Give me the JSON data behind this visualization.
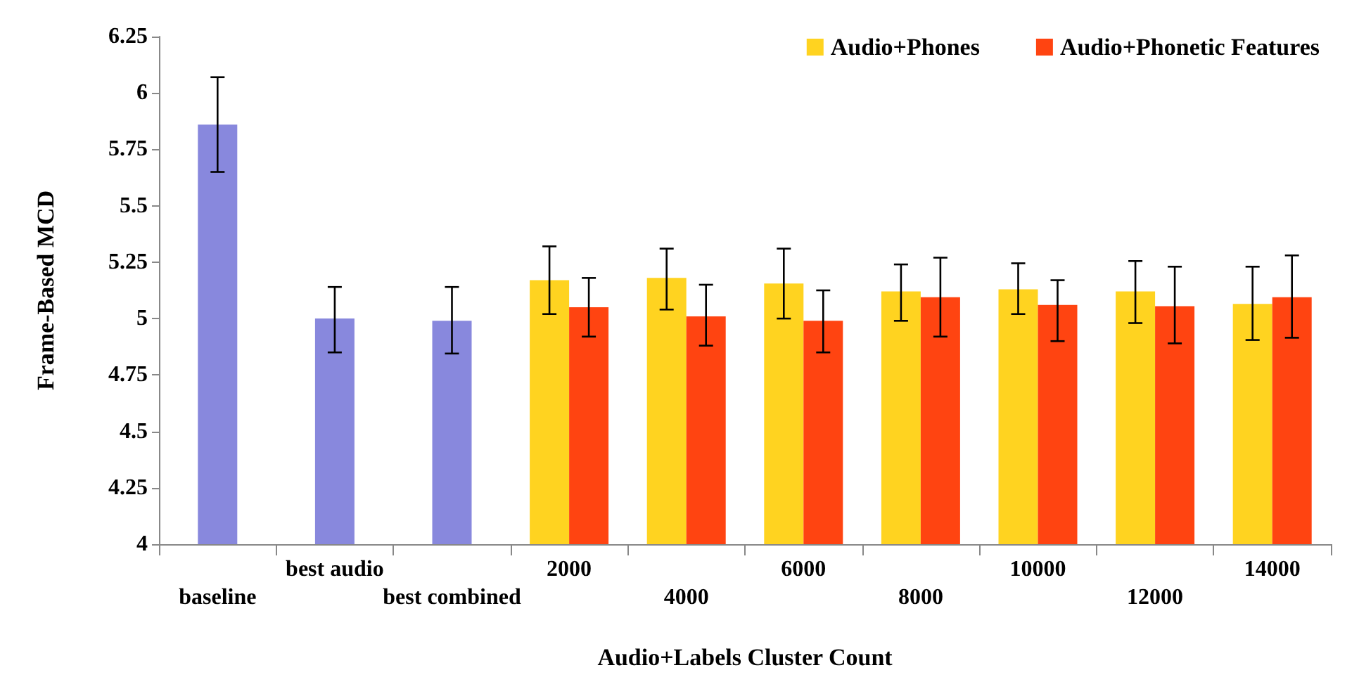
{
  "chart_data": {
    "type": "bar",
    "xlabel": "Audio+Labels Cluster Count",
    "ylabel": "Frame-Based MCD",
    "categories": [
      "baseline",
      "best audio",
      "best combined",
      "2000",
      "4000",
      "6000",
      "8000",
      "10000",
      "12000",
      "14000"
    ],
    "series": [
      {
        "color": "#8888dd",
        "values": [
          5.86,
          5.0,
          4.99,
          null,
          null,
          null,
          null,
          null,
          null,
          null
        ],
        "errors": [
          [
            5.65,
            6.07
          ],
          [
            4.85,
            5.14
          ],
          [
            4.845,
            5.14
          ],
          null,
          null,
          null,
          null,
          null,
          null,
          null
        ]
      },
      {
        "name": "Audio+Phones",
        "color": "#ffd320",
        "values": [
          null,
          null,
          null,
          5.17,
          5.18,
          5.155,
          5.12,
          5.13,
          5.12,
          5.065
        ],
        "errors": [
          null,
          null,
          null,
          [
            5.02,
            5.32
          ],
          [
            5.04,
            5.31
          ],
          [
            5.0,
            5.31
          ],
          [
            4.99,
            5.24
          ],
          [
            5.02,
            5.245
          ],
          [
            4.98,
            5.255
          ],
          [
            4.905,
            5.23
          ]
        ]
      },
      {
        "name": "Audio+Phonetic Features",
        "color": "#ff4411",
        "values": [
          null,
          null,
          null,
          5.05,
          5.01,
          4.99,
          5.095,
          5.06,
          5.055,
          5.095
        ],
        "errors": [
          null,
          null,
          null,
          [
            4.92,
            5.18
          ],
          [
            4.88,
            5.15
          ],
          [
            4.85,
            5.125
          ],
          [
            4.92,
            5.27
          ],
          [
            4.9,
            5.17
          ],
          [
            4.89,
            5.23
          ],
          [
            4.915,
            5.28
          ]
        ]
      }
    ],
    "ylim": [
      4,
      6.25
    ],
    "yticks": [
      4,
      4.25,
      4.5,
      4.75,
      5,
      5.25,
      5.5,
      5.75,
      6,
      6.25
    ],
    "grid": false,
    "legend": "top right"
  }
}
